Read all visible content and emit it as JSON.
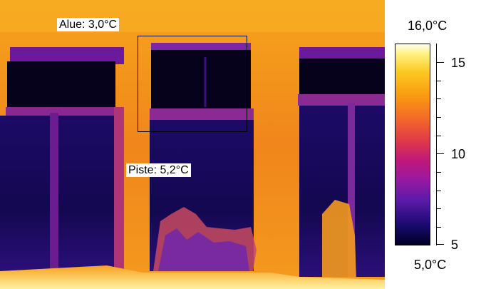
{
  "image": {
    "area_label": "Alue: 3,0°C",
    "spot_label": "Piste: 5,2°C"
  },
  "scale": {
    "max_label": "16,0°C",
    "min_label": "5,0°C",
    "tick_labels": [
      "15",
      "10",
      "5"
    ],
    "range": [
      5.0,
      16.0
    ],
    "palette": "iron"
  },
  "colors": {
    "warm_frame": "#f0841c",
    "cold_glass": "#0a0330",
    "mid_purple": "#7a2aa0"
  }
}
